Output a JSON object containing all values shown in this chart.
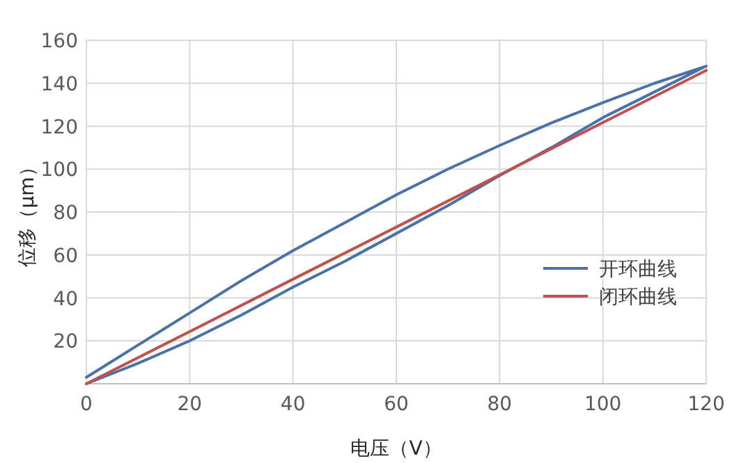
{
  "chart_data": {
    "type": "line",
    "xlabel": "电压（V）",
    "ylabel": "位移（μm）",
    "xlim": [
      0,
      120
    ],
    "ylim": [
      0,
      160
    ],
    "xticks": [
      0,
      20,
      40,
      60,
      80,
      100,
      120
    ],
    "yticks": [
      {
        "value": 0,
        "label": null
      },
      20,
      40,
      60,
      80,
      100,
      120,
      140,
      160
    ],
    "grid": true,
    "legend": "bottom right",
    "line_style": "solid",
    "marker": "none",
    "series": [
      {
        "name": "开环曲线",
        "color": "#4a72a8",
        "x": [
          0,
          10,
          20,
          30,
          40,
          50,
          60,
          70,
          80,
          90,
          100,
          110,
          120,
          110,
          100,
          90,
          80,
          70,
          60,
          50,
          40,
          30,
          20,
          10,
          0
        ],
        "values": [
          0,
          9.5,
          20,
          32,
          45,
          57,
          70,
          83,
          97,
          110,
          124,
          136,
          148,
          140,
          131,
          121.5,
          111,
          100,
          88,
          75,
          62,
          48,
          33,
          18,
          3
        ]
      },
      {
        "name": "闭环曲线",
        "color": "#c0504d",
        "x": [
          0,
          20,
          40,
          60,
          80,
          100,
          120
        ],
        "values": [
          0,
          24.3,
          48.7,
          73,
          97.3,
          121.7,
          146
        ]
      }
    ]
  }
}
